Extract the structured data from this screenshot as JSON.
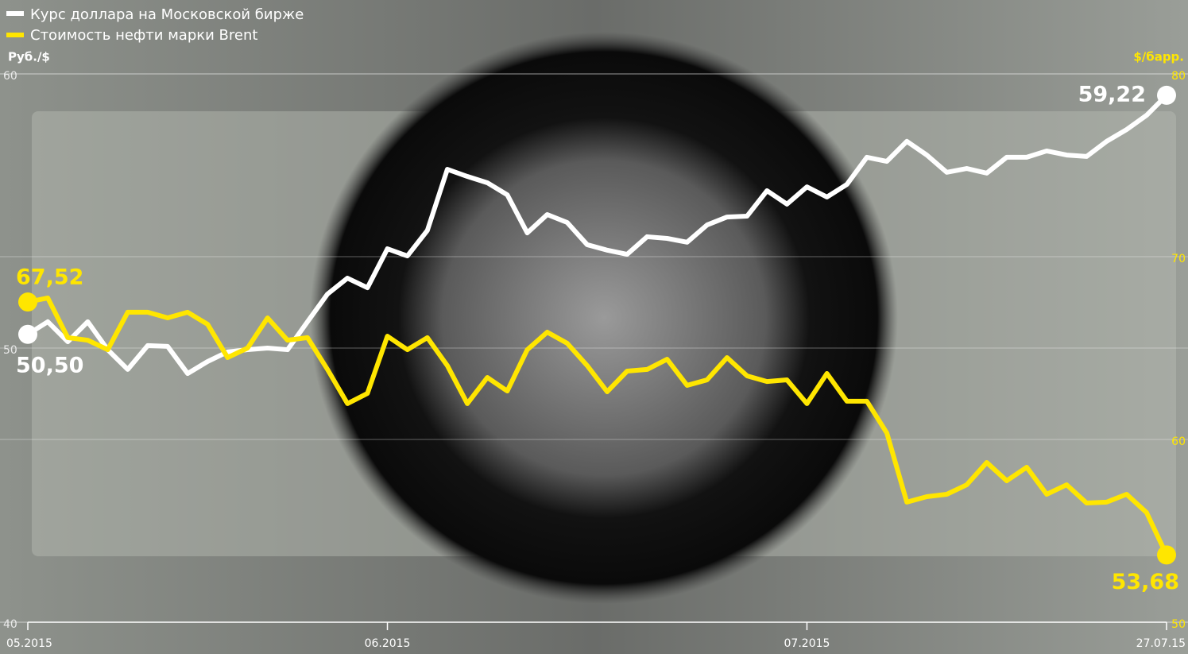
{
  "chart_data": {
    "type": "line",
    "legend": [
      "Курс доллара на Московской бирже",
      "Стоимость нефти марки Brent"
    ],
    "ylabel": "Руб./$",
    "y2label": "$/барр.",
    "categories": [
      "05.2015",
      null,
      null,
      null,
      null,
      null,
      null,
      null,
      null,
      null,
      null,
      null,
      null,
      null,
      null,
      null,
      null,
      null,
      "06.2015",
      null,
      null,
      null,
      null,
      null,
      null,
      null,
      null,
      null,
      null,
      null,
      null,
      null,
      null,
      null,
      null,
      null,
      null,
      null,
      null,
      "07.2015",
      null,
      null,
      null,
      null,
      null,
      null,
      null,
      null,
      null,
      null,
      null,
      null,
      null,
      null,
      null,
      null,
      null,
      "27.07.15"
    ],
    "ylim": [
      40,
      60
    ],
    "yticks": [
      40,
      50,
      60
    ],
    "y2lim": [
      50,
      80
    ],
    "y2ticks": [
      50,
      60,
      70,
      80
    ],
    "grid": true,
    "series": [
      {
        "name": "Курс доллара на Московской бирже",
        "color": "#ffffff",
        "values": [
          50.5,
          50.96,
          50.23,
          50.96,
          49.94,
          49.22,
          50.09,
          50.06,
          49.07,
          49.51,
          49.86,
          49.94,
          50.0,
          49.94,
          50.96,
          51.97,
          52.55,
          52.2,
          53.62,
          53.36,
          54.29,
          56.52,
          56.26,
          56.03,
          55.59,
          54.2,
          54.87,
          54.58,
          53.77,
          53.57,
          53.42,
          54.06,
          54.0,
          53.86,
          54.49,
          54.78,
          54.81,
          55.74,
          55.25,
          55.88,
          55.51,
          55.97,
          56.96,
          56.81,
          57.54,
          57.04,
          56.41,
          56.55,
          56.38,
          56.96,
          56.96,
          57.19,
          57.04,
          56.99,
          57.54,
          57.97,
          58.49,
          59.22
        ],
        "value_labels": [
          "50,50",
          null,
          null,
          null,
          null,
          null,
          null,
          null,
          null,
          null,
          null,
          null,
          null,
          null,
          null,
          null,
          null,
          null,
          null,
          null,
          null,
          null,
          null,
          null,
          null,
          null,
          null,
          null,
          null,
          null,
          null,
          null,
          null,
          null,
          null,
          null,
          null,
          null,
          null,
          null,
          null,
          null,
          null,
          null,
          null,
          null,
          null,
          null,
          null,
          null,
          null,
          null,
          null,
          null,
          null,
          null,
          null,
          "59,22"
        ]
      },
      {
        "name": "Стоимость нефти марки Brent",
        "color": "#ffe600",
        "axis": "y2",
        "values": [
          67.52,
          67.74,
          65.57,
          65.43,
          64.91,
          66.96,
          66.96,
          66.65,
          66.96,
          66.3,
          64.48,
          65.0,
          66.65,
          65.43,
          65.57,
          63.83,
          61.96,
          62.52,
          65.65,
          64.91,
          65.57,
          64.04,
          61.96,
          63.39,
          62.65,
          64.91,
          65.87,
          65.26,
          64.04,
          62.61,
          63.74,
          63.83,
          64.39,
          62.96,
          63.26,
          64.48,
          63.48,
          63.17,
          63.26,
          61.96,
          63.61,
          62.09,
          62.09,
          60.35,
          56.57,
          56.87,
          57.0,
          57.52,
          58.74,
          57.74,
          58.48,
          57.0,
          57.52,
          56.52,
          56.57,
          57.0,
          56.0,
          53.68
        ],
        "value_labels": [
          "67,52",
          null,
          null,
          null,
          null,
          null,
          null,
          null,
          null,
          null,
          null,
          null,
          null,
          null,
          null,
          null,
          null,
          null,
          null,
          null,
          null,
          null,
          null,
          null,
          null,
          null,
          null,
          null,
          null,
          null,
          null,
          null,
          null,
          null,
          null,
          null,
          null,
          null,
          null,
          null,
          null,
          null,
          null,
          null,
          null,
          null,
          null,
          null,
          null,
          null,
          null,
          null,
          null,
          null,
          null,
          null,
          null,
          "53,68"
        ]
      }
    ]
  }
}
